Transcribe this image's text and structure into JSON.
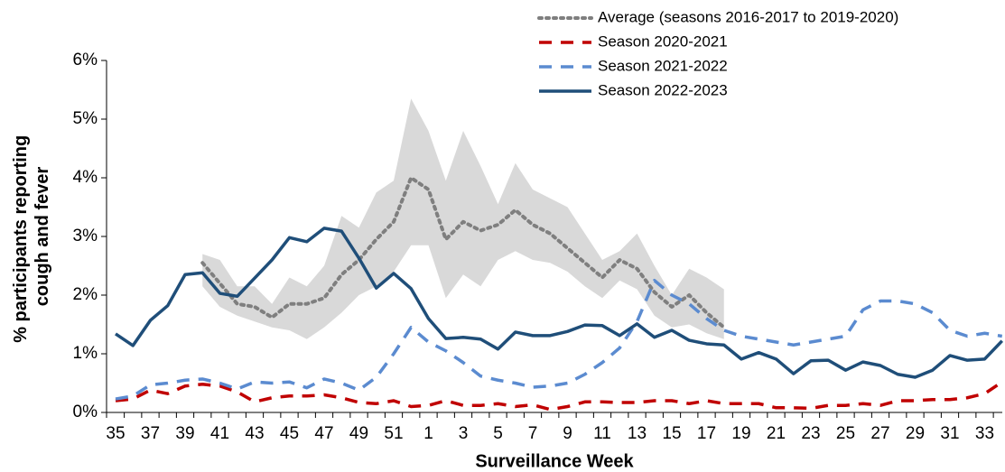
{
  "chart_data": {
    "type": "line",
    "x_label": "Surveillance Week",
    "y_label": [
      "% participants reporting",
      "cough and fever"
    ],
    "categories": [
      "35",
      null,
      "37",
      null,
      "39",
      null,
      "41",
      null,
      "43",
      null,
      "45",
      null,
      "47",
      null,
      "49",
      null,
      "51",
      null,
      "1",
      null,
      "3",
      null,
      "5",
      null,
      "7",
      null,
      "9",
      null,
      "11",
      null,
      "13",
      null,
      "15",
      null,
      "17",
      null,
      "19",
      null,
      "21",
      null,
      "23",
      null,
      "25",
      null,
      "27",
      null,
      "29",
      null,
      "31",
      null,
      "33",
      null
    ],
    "ylim": [
      0,
      6
    ],
    "yticks": [
      {
        "value": 0,
        "label": "0%"
      },
      {
        "value": 1,
        "label": "1%"
      },
      {
        "value": 2,
        "label": "2%"
      },
      {
        "value": 3,
        "label": "3%"
      },
      {
        "value": 4,
        "label": "4%"
      },
      {
        "value": 5,
        "label": "5%"
      },
      {
        "value": 6,
        "label": "6%"
      }
    ],
    "legend": "top-right",
    "band": {
      "color": "#d9d9d9",
      "upper": [
        null,
        null,
        null,
        null,
        null,
        2.7,
        2.6,
        2.15,
        2.15,
        1.85,
        2.3,
        2.15,
        2.5,
        3.35,
        3.15,
        3.75,
        3.95,
        5.35,
        4.8,
        3.95,
        4.8,
        4.2,
        3.55,
        4.25,
        3.8,
        3.65,
        3.5,
        3.05,
        2.6,
        2.75,
        3.05,
        2.5,
        2.0,
        2.45,
        2.3,
        2.1,
        null,
        null,
        null,
        null,
        null,
        null,
        null,
        null,
        null,
        null,
        null,
        null,
        null,
        null,
        null,
        null
      ],
      "lower": [
        null,
        null,
        null,
        null,
        null,
        2.15,
        1.8,
        1.65,
        1.55,
        1.45,
        1.4,
        1.25,
        1.45,
        1.7,
        2.0,
        2.15,
        2.4,
        2.85,
        2.85,
        1.95,
        2.35,
        2.15,
        2.6,
        2.75,
        2.6,
        2.55,
        2.4,
        2.15,
        1.95,
        2.25,
        2.1,
        1.65,
        1.45,
        1.5,
        1.35,
        1.25,
        null,
        null,
        null,
        null,
        null,
        null,
        null,
        null,
        null,
        null,
        null,
        null,
        null,
        null,
        null,
        null
      ]
    },
    "series": [
      {
        "name": "Average (seasons 2016-2017 to 2019-2020)",
        "color": "#7f7f7f",
        "dash": "dotted",
        "values": [
          null,
          null,
          null,
          null,
          null,
          2.55,
          2.2,
          1.85,
          1.8,
          1.62,
          1.85,
          1.85,
          1.95,
          2.35,
          2.6,
          2.95,
          3.25,
          4.0,
          3.8,
          2.95,
          3.25,
          3.1,
          3.2,
          3.45,
          3.2,
          3.05,
          2.8,
          2.55,
          2.3,
          2.6,
          2.45,
          2.05,
          1.8,
          2.0,
          1.7,
          1.45,
          null,
          null,
          null,
          null,
          null,
          null,
          null,
          null,
          null,
          null,
          null,
          null,
          null,
          null,
          null,
          null
        ]
      },
      {
        "name": "Season 2020-2021",
        "color": "#c00000",
        "dash": "dashed",
        "values": [
          0.2,
          0.23,
          0.38,
          0.32,
          0.45,
          0.48,
          0.45,
          0.35,
          0.18,
          0.25,
          0.28,
          0.28,
          0.3,
          0.25,
          0.17,
          0.15,
          0.2,
          0.1,
          0.12,
          0.2,
          0.12,
          0.12,
          0.15,
          0.1,
          0.13,
          0.05,
          0.1,
          0.18,
          0.18,
          0.17,
          0.17,
          0.2,
          0.2,
          0.15,
          0.2,
          0.15,
          0.15,
          0.15,
          0.08,
          0.08,
          0.07,
          0.12,
          0.12,
          0.15,
          0.12,
          0.2,
          0.2,
          0.22,
          0.22,
          0.25,
          0.32,
          0.52
        ]
      },
      {
        "name": "Season 2021-2022",
        "color": "#5b8bd0",
        "dash": "dashed",
        "values": [
          0.23,
          0.28,
          0.47,
          0.5,
          0.55,
          0.57,
          0.5,
          0.4,
          0.52,
          0.5,
          0.52,
          0.42,
          0.57,
          0.5,
          0.38,
          0.6,
          1.0,
          1.45,
          1.2,
          1.05,
          0.85,
          0.62,
          0.55,
          0.5,
          0.43,
          0.45,
          0.5,
          0.65,
          0.85,
          1.1,
          1.55,
          2.25,
          2.0,
          1.85,
          1.6,
          1.4,
          1.3,
          1.25,
          1.2,
          1.15,
          1.2,
          1.25,
          1.3,
          1.75,
          1.9,
          1.9,
          1.85,
          1.7,
          1.4,
          1.3,
          1.35,
          1.3
        ]
      },
      {
        "name": "Season 2022-2023",
        "color": "#1f4e79",
        "dash": "solid",
        "values": [
          1.34,
          1.14,
          1.57,
          1.82,
          2.35,
          2.38,
          2.03,
          1.98,
          2.29,
          2.6,
          2.98,
          2.91,
          3.14,
          3.09,
          2.63,
          2.12,
          2.37,
          2.11,
          1.6,
          1.26,
          1.28,
          1.25,
          1.08,
          1.37,
          1.31,
          1.31,
          1.38,
          1.49,
          1.48,
          1.31,
          1.51,
          1.28,
          1.4,
          1.23,
          1.17,
          1.15,
          0.91,
          1.02,
          0.91,
          0.66,
          0.88,
          0.89,
          0.72,
          0.86,
          0.8,
          0.65,
          0.6,
          0.72,
          0.97,
          0.89,
          0.91,
          1.22
        ]
      }
    ]
  }
}
